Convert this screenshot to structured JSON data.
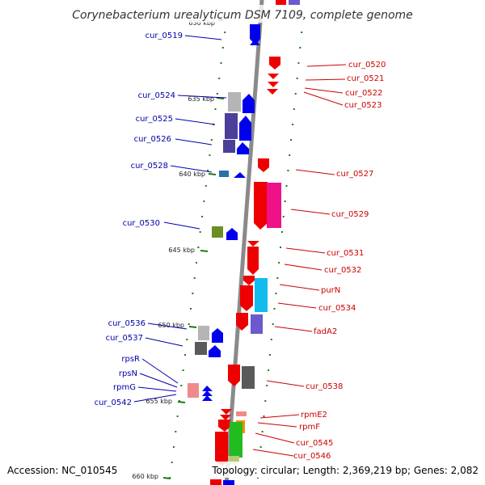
{
  "header": {
    "title": "Corynebacterium urealyticum DSM 7109, complete genome"
  },
  "footer": {
    "accession": "Accession: NC_010545",
    "summary": "Topology: circular; Length: 2,369,219 bp; Genes: 2,082"
  },
  "colors": {
    "backbone": "#8a8a8a",
    "forward_label": "#0000aa",
    "reverse_label": "#cc0000",
    "forward_arrow": "#0000ee",
    "reverse_arrow": "#ee0000",
    "tick": "#1a7a1a"
  },
  "ticks": [
    {
      "label": "630 kbp",
      "partial": true
    },
    {
      "label": "635 kbp"
    },
    {
      "label": "640 kbp"
    },
    {
      "label": "645 kbp"
    },
    {
      "label": "650 kbp"
    },
    {
      "label": "655 kbp"
    },
    {
      "label": "660 kbp"
    }
  ],
  "left_genes": [
    {
      "label": "cur_0519"
    },
    {
      "label": "cur_0524"
    },
    {
      "label": "cur_0525"
    },
    {
      "label": "cur_0526"
    },
    {
      "label": "cur_0528"
    },
    {
      "label": "cur_0530"
    },
    {
      "label": "cur_0536"
    },
    {
      "label": "cur_0537"
    },
    {
      "label": "rpsR"
    },
    {
      "label": "rpsN"
    },
    {
      "label": "rpmG"
    },
    {
      "label": "cur_0542"
    }
  ],
  "right_genes": [
    {
      "label": "cur_0520"
    },
    {
      "label": "cur_0521"
    },
    {
      "label": "cur_0522"
    },
    {
      "label": "cur_0523"
    },
    {
      "label": "cur_0527"
    },
    {
      "label": "cur_0529"
    },
    {
      "label": "cur_0531"
    },
    {
      "label": "cur_0532"
    },
    {
      "label": "purN"
    },
    {
      "label": "cur_0534"
    },
    {
      "label": "fadA2"
    },
    {
      "label": "cur_0538"
    },
    {
      "label": "rpmE2"
    },
    {
      "label": "rpmF"
    },
    {
      "label": "cur_0545"
    },
    {
      "label": "cur_0546"
    }
  ]
}
